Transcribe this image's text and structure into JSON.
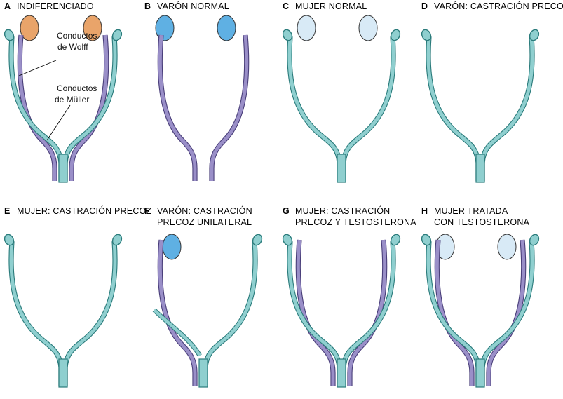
{
  "colors": {
    "mullerian_fill": "#8fcfcf",
    "mullerian_stroke": "#2a7b7b",
    "wolffian_fill": "#9a8fc8",
    "wolffian_stroke": "#4a3f7a",
    "wolffian_light": "#c9c1e3",
    "tube_light": "#cfeaea",
    "gonad_indifferent": "#e9a46a",
    "gonad_testis": "#5fb0e3",
    "gonad_ovary": "#d8eaf6",
    "gonad_stroke": "#333333"
  },
  "panels": [
    {
      "letter": "A",
      "title_lines": [
        "INDIFERENCIADO"
      ],
      "gonads": "indifferent",
      "mullerian": "full",
      "wolffian": "full"
    },
    {
      "letter": "B",
      "title_lines": [
        "VARÓN NORMAL"
      ],
      "gonads": "testis",
      "mullerian": "none",
      "wolffian": "full_only"
    },
    {
      "letter": "C",
      "title_lines": [
        "MUJER NORMAL"
      ],
      "gonads": "ovary",
      "mullerian": "full",
      "wolffian": "none"
    },
    {
      "letter": "D",
      "title_lines": [
        "VARÓN: CASTRACIÓN PRECOZ"
      ],
      "gonads": "none",
      "mullerian": "full",
      "wolffian": "none"
    },
    {
      "letter": "E",
      "title_lines": [
        "MUJER: CASTRACIÓN PRECOZ"
      ],
      "gonads": "none",
      "mullerian": "full",
      "wolffian": "none"
    },
    {
      "letter": "F",
      "title_lines": [
        "VARÓN: CASTRACIÓN",
        "PRECOZ UNILATERAL"
      ],
      "gonads": "left_testis",
      "mullerian": "right_full",
      "wolffian": "left_full"
    },
    {
      "letter": "G",
      "title_lines": [
        "MUJER: CASTRACIÓN",
        "PRECOZ Y TESTOSTERONA"
      ],
      "gonads": "none",
      "mullerian": "full",
      "wolffian": "full"
    },
    {
      "letter": "H",
      "title_lines": [
        "MUJER TRATADA",
        "CON TESTOSTERONA"
      ],
      "gonads": "ovary",
      "mullerian": "full",
      "wolffian": "full"
    }
  ],
  "labels": {
    "wolff_line1": "Conductos",
    "wolff_line2": "de Wolff",
    "muller_line1": "Conductos",
    "muller_line2": "de Müller"
  }
}
